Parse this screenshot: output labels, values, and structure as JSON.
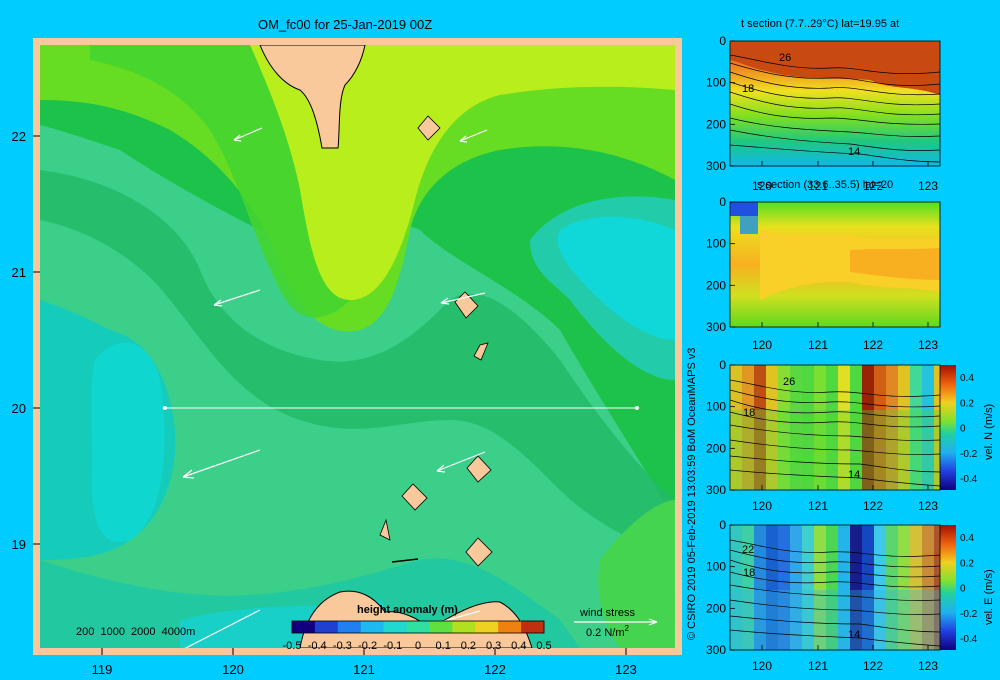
{
  "main_map": {
    "title": "OM_fc00 for 25-Jan-2019 00Z",
    "lat_ticks": [
      "22",
      "21",
      "20",
      "19"
    ],
    "lon_ticks": [
      "119",
      "120",
      "121",
      "122",
      "123"
    ],
    "depth_legend": "200  1000  2000  4000m",
    "colorbar_title": "height anomaly (m)",
    "colorbar_ticks": [
      "-0.5",
      "-0.4",
      "-0.3",
      "-0.2",
      "-0.1",
      "0",
      "0.1",
      "0.2",
      "0.3",
      "0.4",
      "0.5"
    ],
    "wind_label": "wind stress",
    "wind_scale": "0.2 N/m",
    "wind_scale_sup": "2"
  },
  "side_panels": {
    "t_section": {
      "title": "t section (7.7..29°C) lat=19.95 at",
      "contour_labels": [
        "26",
        "18",
        "14"
      ],
      "depth_ticks": [
        "0",
        "100",
        "200",
        "300"
      ],
      "lon_ticks": [
        "120",
        "121",
        "122",
        "123"
      ]
    },
    "s_section": {
      "title": "s section (33.6..35.5) lat=20",
      "depth_ticks": [
        "0",
        "100",
        "200",
        "300"
      ],
      "lon_ticks": [
        "120",
        "121",
        "122",
        "123"
      ]
    },
    "vel_n": {
      "contour_labels": [
        "26",
        "18",
        "14"
      ],
      "depth_ticks": [
        "0",
        "100",
        "200",
        "300"
      ],
      "lon_ticks": [
        "120",
        "121",
        "122",
        "123"
      ],
      "cbar_ticks": [
        "0.4",
        "0.2",
        "0",
        "-0.2",
        "-0.4"
      ],
      "cbar_label": "vel. N (m/s)"
    },
    "vel_e": {
      "contour_labels": [
        "22",
        "18",
        "14"
      ],
      "depth_ticks": [
        "0",
        "100",
        "200",
        "300"
      ],
      "lon_ticks": [
        "120",
        "121",
        "122",
        "123"
      ],
      "cbar_ticks": [
        "0.4",
        "0.2",
        "0",
        "-0.2",
        "-0.4"
      ],
      "cbar_label": "vel. E (m/s)"
    }
  },
  "credit": "© CSIRO 2019   05-Feb-2019 13:03:59 BoM OceanMAPS v3",
  "colors": {
    "background": "#00ccff",
    "land": "#f9c89b",
    "frame": "#f9c89b"
  }
}
